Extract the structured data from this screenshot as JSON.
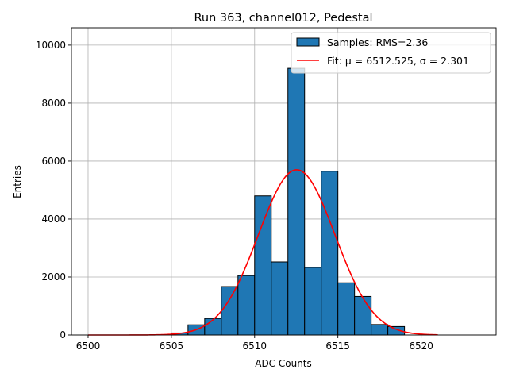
{
  "chart_data": {
    "type": "bar",
    "title": "Run 363, channel012, Pedestal",
    "xlabel": "ADC Counts",
    "ylabel": "Entries",
    "xlim": [
      6499.0,
      6524.5
    ],
    "ylim": [
      0,
      10600
    ],
    "xticks": [
      6500,
      6505,
      6510,
      6515,
      6520
    ],
    "yticks": [
      0,
      2000,
      4000,
      6000,
      8000,
      10000
    ],
    "grid": true,
    "legend_position": "top-right",
    "bins": {
      "edges": [
        6505,
        6506,
        6507,
        6508,
        6509,
        6510,
        6511,
        6512,
        6513,
        6514,
        6515,
        6516,
        6517,
        6518,
        6519
      ],
      "counts": [
        70,
        350,
        570,
        1670,
        2050,
        4800,
        2520,
        9200,
        2330,
        5650,
        1800,
        1330,
        360,
        290
      ]
    },
    "series": [
      {
        "name": "Samples: RMS=2.36",
        "kind": "histogram",
        "color": "#1f77b4"
      },
      {
        "name": "Fit: μ = 6512.525, σ = 2.301",
        "kind": "gaussian",
        "color": "#ff0000",
        "mu": 6512.525,
        "sigma": 2.301,
        "amplitude": 5700,
        "x_range": [
          6500,
          6521
        ]
      }
    ]
  }
}
